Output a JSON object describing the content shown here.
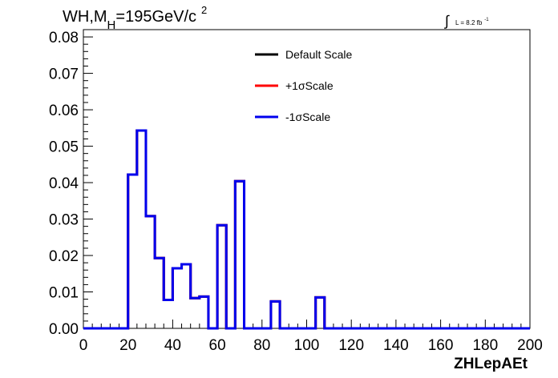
{
  "chart_data": {
    "type": "line",
    "title": {
      "main": "WH,M",
      "sub": "H",
      "rest": "=195GeV/c",
      "sup": "2"
    },
    "lumi": {
      "prefix": "L = 8.2 fb",
      "sup": "-1"
    },
    "xlabel": "ZHLepAEt",
    "ylabel": "",
    "xlim": [
      0,
      200
    ],
    "ylim": [
      0,
      0.082
    ],
    "x_ticks": [
      0,
      20,
      40,
      60,
      80,
      100,
      120,
      140,
      160,
      180,
      200
    ],
    "y_ticks": [
      0.0,
      0.01,
      0.02,
      0.03,
      0.04,
      0.05,
      0.06,
      0.07,
      0.08
    ],
    "y_tick_labels": [
      "0.00",
      "0.01",
      "0.02",
      "0.03",
      "0.04",
      "0.05",
      "0.06",
      "0.07",
      "0.08"
    ],
    "bin_width": 4,
    "bin_edges_start": 0,
    "grid": false,
    "legend_position": "top-center",
    "series": [
      {
        "name": "Default Scale",
        "color": "#000000",
        "values": [
          0,
          0,
          0,
          0,
          0,
          0.0422,
          0.0543,
          0.0308,
          0.0193,
          0.0078,
          0.0165,
          0.0176,
          0.0083,
          0.0087,
          0,
          0.0283,
          0,
          0.0404,
          0,
          0,
          0,
          0.0074,
          0,
          0,
          0,
          0,
          0.0085,
          0,
          0,
          0,
          0,
          0,
          0,
          0,
          0,
          0,
          0,
          0,
          0,
          0,
          0,
          0,
          0,
          0,
          0,
          0,
          0,
          0,
          0,
          0
        ]
      },
      {
        "name": "+1σScale",
        "color": "#ff0000",
        "values": [
          0,
          0,
          0,
          0,
          0,
          0.0422,
          0.0543,
          0.0308,
          0.0193,
          0.0078,
          0.0165,
          0.0176,
          0.0083,
          0.0087,
          0,
          0.0283,
          0,
          0.0404,
          0,
          0,
          0,
          0.0074,
          0,
          0,
          0,
          0,
          0.0085,
          0,
          0,
          0,
          0,
          0,
          0,
          0,
          0,
          0,
          0,
          0,
          0,
          0,
          0,
          0,
          0,
          0,
          0,
          0,
          0,
          0,
          0,
          0
        ]
      },
      {
        "name": "-1σScale",
        "color": "#0000ee",
        "values": [
          0,
          0,
          0,
          0,
          0,
          0.0422,
          0.0543,
          0.0308,
          0.0193,
          0.0078,
          0.0165,
          0.0176,
          0.0083,
          0.0087,
          0,
          0.0283,
          0,
          0.0404,
          0,
          0,
          0,
          0.0074,
          0,
          0,
          0,
          0,
          0.0085,
          0,
          0,
          0,
          0,
          0,
          0,
          0,
          0,
          0,
          0,
          0,
          0,
          0,
          0,
          0,
          0,
          0,
          0,
          0,
          0,
          0,
          0,
          0
        ]
      }
    ]
  }
}
